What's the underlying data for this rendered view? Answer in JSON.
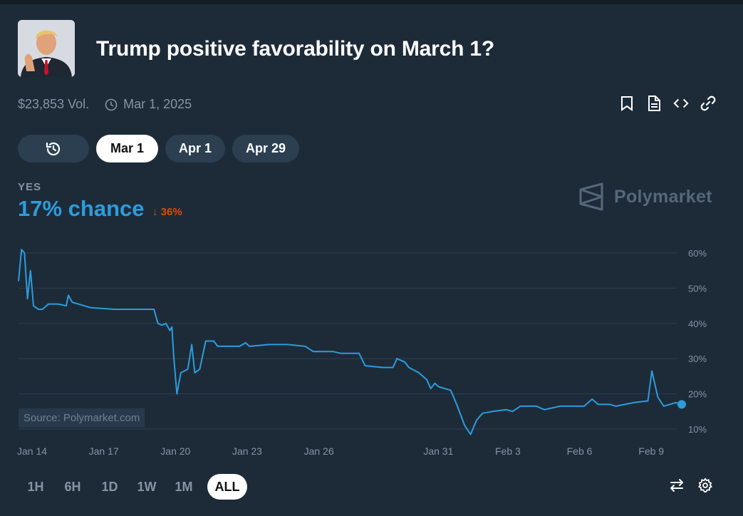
{
  "market": {
    "title": "Trump positive favorability on March 1?",
    "volume": "$23,853 Vol.",
    "date": "Mar 1, 2025"
  },
  "icons": {
    "bookmark": "bookmark-icon",
    "document": "document-icon",
    "embed": "code-icon",
    "link": "link-icon",
    "history": "history-icon",
    "swap": "swap-icon",
    "settings": "gear-icon"
  },
  "tabs": [
    {
      "label": "Mar 1",
      "active": true
    },
    {
      "label": "Apr 1",
      "active": false
    },
    {
      "label": "Apr 29",
      "active": false
    }
  ],
  "outcome": {
    "label": "YES",
    "chance": "17% chance",
    "change": "36%",
    "change_direction": "down"
  },
  "brand": "Polymarket",
  "source": "Source: Polymarket.com",
  "ranges": [
    {
      "label": "1H",
      "active": false
    },
    {
      "label": "6H",
      "active": false
    },
    {
      "label": "1D",
      "active": false
    },
    {
      "label": "1W",
      "active": false
    },
    {
      "label": "1M",
      "active": false
    },
    {
      "label": "ALL",
      "active": true
    }
  ],
  "colors": {
    "background": "#1d2b39",
    "line": "#2d9cdb",
    "down": "#e64800",
    "grid": "#2e3f50",
    "muted": "#8593a3"
  },
  "chart_data": {
    "type": "line",
    "title": "",
    "xlabel": "",
    "ylabel": "",
    "ylim": [
      8,
      62
    ],
    "yticks": [
      10,
      20,
      30,
      40,
      50,
      60
    ],
    "ytick_labels": [
      "10%",
      "20%",
      "30%",
      "40%",
      "50%",
      "60%"
    ],
    "xlim": [
      "2025-01-14",
      "2025-02-10T18:00"
    ],
    "xticks": [
      "2025-01-14",
      "2025-01-17",
      "2025-01-20",
      "2025-01-23",
      "2025-01-26",
      "2025-01-31",
      "2025-02-03",
      "2025-02-06",
      "2025-02-09"
    ],
    "xtick_labels": [
      "Jan 14",
      "Jan 17",
      "Jan 20",
      "Jan 23",
      "Jan 26",
      "Jan 31",
      "Feb 3",
      "Feb 6",
      "Feb 9"
    ],
    "grid": true,
    "series": [
      {
        "name": "",
        "points": [
          [
            "2025-01-14T00:00",
            52
          ],
          [
            "2025-01-14T03:00",
            61
          ],
          [
            "2025-01-14T06:00",
            60
          ],
          [
            "2025-01-14T09:00",
            47
          ],
          [
            "2025-01-14T12:00",
            55
          ],
          [
            "2025-01-14T15:00",
            45
          ],
          [
            "2025-01-14T20:00",
            44
          ],
          [
            "2025-01-15T00:00",
            44
          ],
          [
            "2025-01-15T06:00",
            45.5
          ],
          [
            "2025-01-15T16:00",
            45.5
          ],
          [
            "2025-01-16T00:00",
            45
          ],
          [
            "2025-01-16T02:00",
            48
          ],
          [
            "2025-01-16T06:00",
            46
          ],
          [
            "2025-01-16T12:00",
            45.5
          ],
          [
            "2025-01-17T00:00",
            44.5
          ],
          [
            "2025-01-18T00:00",
            44
          ],
          [
            "2025-01-19T16:00",
            44
          ],
          [
            "2025-01-19T20:00",
            40
          ],
          [
            "2025-01-20T00:00",
            39.5
          ],
          [
            "2025-01-20T04:00",
            40
          ],
          [
            "2025-01-20T08:00",
            38
          ],
          [
            "2025-01-20T10:00",
            39
          ],
          [
            "2025-01-20T12:00",
            30
          ],
          [
            "2025-01-20T15:00",
            20
          ],
          [
            "2025-01-20T19:00",
            26
          ],
          [
            "2025-01-21T02:00",
            27
          ],
          [
            "2025-01-21T06:00",
            34
          ],
          [
            "2025-01-21T09:00",
            26
          ],
          [
            "2025-01-21T14:00",
            27
          ],
          [
            "2025-01-21T20:00",
            35
          ],
          [
            "2025-01-22T04:00",
            35
          ],
          [
            "2025-01-22T08:00",
            33.5
          ],
          [
            "2025-01-23T06:00",
            33.5
          ],
          [
            "2025-01-23T12:00",
            34.5
          ],
          [
            "2025-01-23T16:00",
            33.5
          ],
          [
            "2025-01-24T12:00",
            34
          ],
          [
            "2025-01-25T06:00",
            34
          ],
          [
            "2025-01-26T00:00",
            33.5
          ],
          [
            "2025-01-26T08:00",
            32
          ],
          [
            "2025-01-27T04:00",
            32
          ],
          [
            "2025-01-27T12:00",
            31.5
          ],
          [
            "2025-01-28T06:00",
            31.5
          ],
          [
            "2025-01-28T12:00",
            28
          ],
          [
            "2025-01-29T06:00",
            27.5
          ],
          [
            "2025-01-29T16:00",
            27.5
          ],
          [
            "2025-01-29T20:00",
            30
          ],
          [
            "2025-01-30T04:00",
            29
          ],
          [
            "2025-01-30T08:00",
            27.5
          ],
          [
            "2025-01-30T18:00",
            26
          ],
          [
            "2025-01-31T02:00",
            24
          ],
          [
            "2025-01-31T06:00",
            21.5
          ],
          [
            "2025-01-31T10:00",
            23
          ],
          [
            "2025-01-31T14:00",
            22
          ],
          [
            "2025-02-01T02:00",
            21
          ],
          [
            "2025-02-01T08:00",
            17
          ],
          [
            "2025-02-01T16:00",
            11
          ],
          [
            "2025-02-01T22:00",
            8.5
          ],
          [
            "2025-02-02T04:00",
            12.5
          ],
          [
            "2025-02-02T10:00",
            14.5
          ],
          [
            "2025-02-02T20:00",
            15
          ],
          [
            "2025-02-03T10:00",
            15.5
          ],
          [
            "2025-02-03T16:00",
            15
          ],
          [
            "2025-02-04T00:00",
            16.5
          ],
          [
            "2025-02-04T16:00",
            16.5
          ],
          [
            "2025-02-05T00:00",
            15.5
          ],
          [
            "2025-02-05T16:00",
            16.5
          ],
          [
            "2025-02-06T16:00",
            16.5
          ],
          [
            "2025-02-07T00:00",
            18.5
          ],
          [
            "2025-02-07T06:00",
            17
          ],
          [
            "2025-02-07T18:00",
            17
          ],
          [
            "2025-02-08T00:00",
            16.5
          ],
          [
            "2025-02-08T18:00",
            17.5
          ],
          [
            "2025-02-09T08:00",
            18
          ],
          [
            "2025-02-09T12:00",
            26.5
          ],
          [
            "2025-02-09T18:00",
            19
          ],
          [
            "2025-02-10T00:00",
            16.5
          ],
          [
            "2025-02-10T12:00",
            17.5
          ],
          [
            "2025-02-10T18:00",
            17
          ]
        ]
      }
    ]
  }
}
